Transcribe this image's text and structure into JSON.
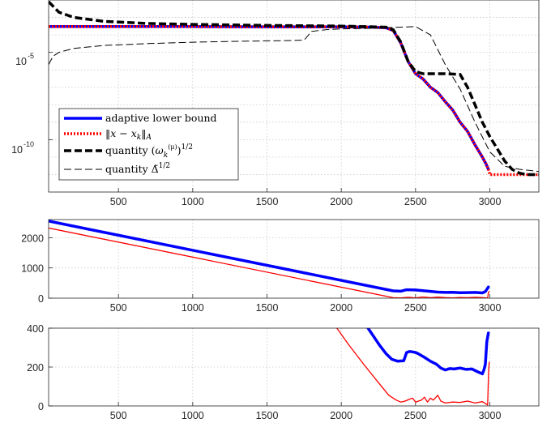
{
  "chart_data": [
    {
      "type": "line",
      "panel": "top",
      "yscale": "log",
      "xlim": [
        30,
        3330
      ],
      "ylim": [
        1e-13,
        0.01
      ],
      "xticks": [
        500,
        1000,
        1500,
        2000,
        2500,
        3000
      ],
      "xtick_labels": [
        "500",
        "1000",
        "1500",
        "2000",
        "2500",
        "3000"
      ],
      "yticks": [
        1e-05,
        1e-10
      ],
      "ytick_labels": [
        {
          "base": "10",
          "exp": "-5"
        },
        {
          "base": "10",
          "exp": "-10"
        }
      ],
      "grid": true,
      "legend_position": "bottom-left",
      "series": [
        {
          "name": "adaptive lower bound",
          "color": "#0000ff",
          "style": "solid-thick",
          "x": [
            30,
            500,
            1000,
            1500,
            2000,
            2200,
            2300,
            2350,
            2400,
            2450,
            2500,
            2550,
            2600,
            2650,
            2700,
            2750,
            2800,
            2850,
            2900,
            2950,
            2975,
            2990
          ],
          "y": [
            0.0003,
            0.0003,
            0.0003,
            0.00029,
            0.00029,
            0.00028,
            0.00026,
            0.00018,
            3.5e-05,
            3e-06,
            6e-07,
            3e-07,
            1e-07,
            5e-08,
            1.5e-08,
            5e-09,
            1e-09,
            3e-10,
            5e-11,
            1e-11,
            4e-12,
            2e-12
          ]
        },
        {
          "name": "||x - x_k||_A",
          "color": "#ff0000",
          "style": "dotted-thick",
          "x": [
            30,
            500,
            1000,
            1500,
            2000,
            2200,
            2300,
            2350,
            2400,
            2450,
            2500,
            2550,
            2600,
            2650,
            2700,
            2750,
            2800,
            2850,
            2900,
            2950,
            2975,
            2990,
            3000,
            3050,
            3100,
            3200,
            3330
          ],
          "y": [
            0.0003,
            0.0003,
            0.0003,
            0.00029,
            0.00029,
            0.00028,
            0.00026,
            0.00018,
            3.5e-05,
            3e-06,
            6e-07,
            3e-07,
            1e-07,
            5e-08,
            1.5e-08,
            5e-09,
            1e-09,
            3e-10,
            5e-11,
            1e-11,
            4e-12,
            2e-12,
            1e-12,
            1e-12,
            1e-12,
            1e-12,
            1e-12
          ]
        },
        {
          "name": "quantity (ω_k^(μ))^(1/2)",
          "color": "#000000",
          "style": "dashed-thick",
          "x": [
            30,
            100,
            200,
            400,
            700,
            1000,
            1500,
            2000,
            2300,
            2350,
            2400,
            2450,
            2500,
            2550,
            2600,
            2700,
            2800,
            2850,
            2900,
            2950,
            3000,
            3050,
            3100,
            3150,
            3200,
            3250,
            3330
          ],
          "y": [
            0.008,
            0.002,
            0.001,
            0.0006,
            0.00045,
            0.0004,
            0.00035,
            0.00032,
            0.00028,
            0.0002,
            4e-05,
            3e-06,
            8e-07,
            6e-07,
            6e-07,
            6e-07,
            5.5e-07,
            1e-07,
            1e-08,
            1e-09,
            1.5e-10,
            3e-11,
            6e-12,
            2e-12,
            1.2e-12,
            1e-12,
            1e-12
          ]
        },
        {
          "name": "quantity Δ̃^(1/2)",
          "color": "#000000",
          "style": "dashed-thin",
          "x": [
            30,
            60,
            100,
            200,
            400,
            700,
            1000,
            1300,
            1600,
            1750,
            1800,
            1900,
            2000,
            2200,
            2400,
            2500,
            2600,
            2700,
            2800,
            2900,
            3000,
            3100,
            3200,
            3330
          ],
          "y": [
            2e-06,
            6e-06,
            1e-05,
            1.7e-05,
            2.5e-05,
            3.2e-05,
            3.8e-05,
            4.3e-05,
            4.7e-05,
            5e-05,
            0.00016,
            0.0002,
            0.00022,
            0.00024,
            0.00028,
            0.0003,
            0.0001,
            2e-06,
            8e-08,
            1e-09,
            2e-11,
            3e-12,
            2e-12,
            1.5e-12
          ]
        }
      ]
    },
    {
      "type": "line",
      "panel": "middle",
      "xlim": [
        30,
        3330
      ],
      "ylim": [
        0,
        2600
      ],
      "xticks": [
        500,
        1000,
        1500,
        2000,
        2500,
        3000
      ],
      "xtick_labels": [
        "500",
        "1000",
        "1500",
        "2000",
        "2500",
        "3000"
      ],
      "yticks": [
        0,
        1000,
        2000
      ],
      "ytick_labels": [
        "0",
        "1000",
        "2000"
      ],
      "grid": true,
      "series": [
        {
          "color": "#0000ff",
          "style": "solid-thick",
          "x": [
            30,
            2350,
            2400,
            2440,
            2500,
            2550,
            2600,
            2650,
            2700,
            2750,
            2800,
            2850,
            2900,
            2950,
            2970,
            2985,
            2990
          ],
          "y": [
            2550,
            240,
            230,
            280,
            270,
            250,
            225,
            200,
            190,
            195,
            180,
            185,
            190,
            175,
            220,
            330,
            370
          ]
        },
        {
          "color": "#ff0000",
          "style": "solid-thin",
          "x": [
            30,
            2350,
            2400,
            2450,
            2500,
            2550,
            2600,
            2650,
            2700,
            2750,
            2800,
            2850,
            2900,
            2950,
            2975,
            2985,
            2990,
            2995
          ],
          "y": [
            2320,
            15,
            10,
            30,
            10,
            40,
            15,
            35,
            20,
            10,
            25,
            15,
            30,
            20,
            10,
            0,
            180,
            220
          ]
        }
      ]
    },
    {
      "type": "line",
      "panel": "bottom",
      "xlim": [
        30,
        3330
      ],
      "ylim": [
        0,
        400
      ],
      "xticks": [
        500,
        1000,
        1500,
        2000,
        2500,
        3000
      ],
      "xtick_labels": [
        "500",
        "1000",
        "1500",
        "2000",
        "2500",
        "3000"
      ],
      "yticks": [
        0,
        200,
        400
      ],
      "ytick_labels": [
        "0",
        "200",
        "400"
      ],
      "grid": true,
      "series": [
        {
          "color": "#0000ff",
          "style": "solid-thick",
          "x": [
            2180,
            2220,
            2260,
            2300,
            2340,
            2380,
            2420,
            2440,
            2460,
            2480,
            2500,
            2520,
            2560,
            2600,
            2640,
            2670,
            2700,
            2730,
            2760,
            2800,
            2840,
            2880,
            2920,
            2950,
            2960,
            2970,
            2980,
            2990
          ],
          "y": [
            400,
            355,
            310,
            270,
            240,
            230,
            232,
            275,
            280,
            278,
            275,
            268,
            250,
            230,
            215,
            195,
            185,
            192,
            190,
            195,
            188,
            190,
            175,
            165,
            185,
            215,
            330,
            375
          ]
        },
        {
          "color": "#ff0000",
          "style": "solid-thin",
          "x": [
            1970,
            2050,
            2150,
            2250,
            2320,
            2370,
            2400,
            2430,
            2460,
            2480,
            2500,
            2520,
            2540,
            2560,
            2580,
            2600,
            2620,
            2650,
            2670,
            2700,
            2750,
            2800,
            2850,
            2900,
            2950,
            2975,
            2985,
            2992,
            2996
          ],
          "y": [
            400,
            315,
            215,
            120,
            55,
            30,
            20,
            25,
            35,
            40,
            20,
            25,
            30,
            45,
            20,
            40,
            30,
            55,
            25,
            15,
            20,
            18,
            25,
            15,
            22,
            10,
            5,
            180,
            225
          ]
        }
      ]
    }
  ]
}
